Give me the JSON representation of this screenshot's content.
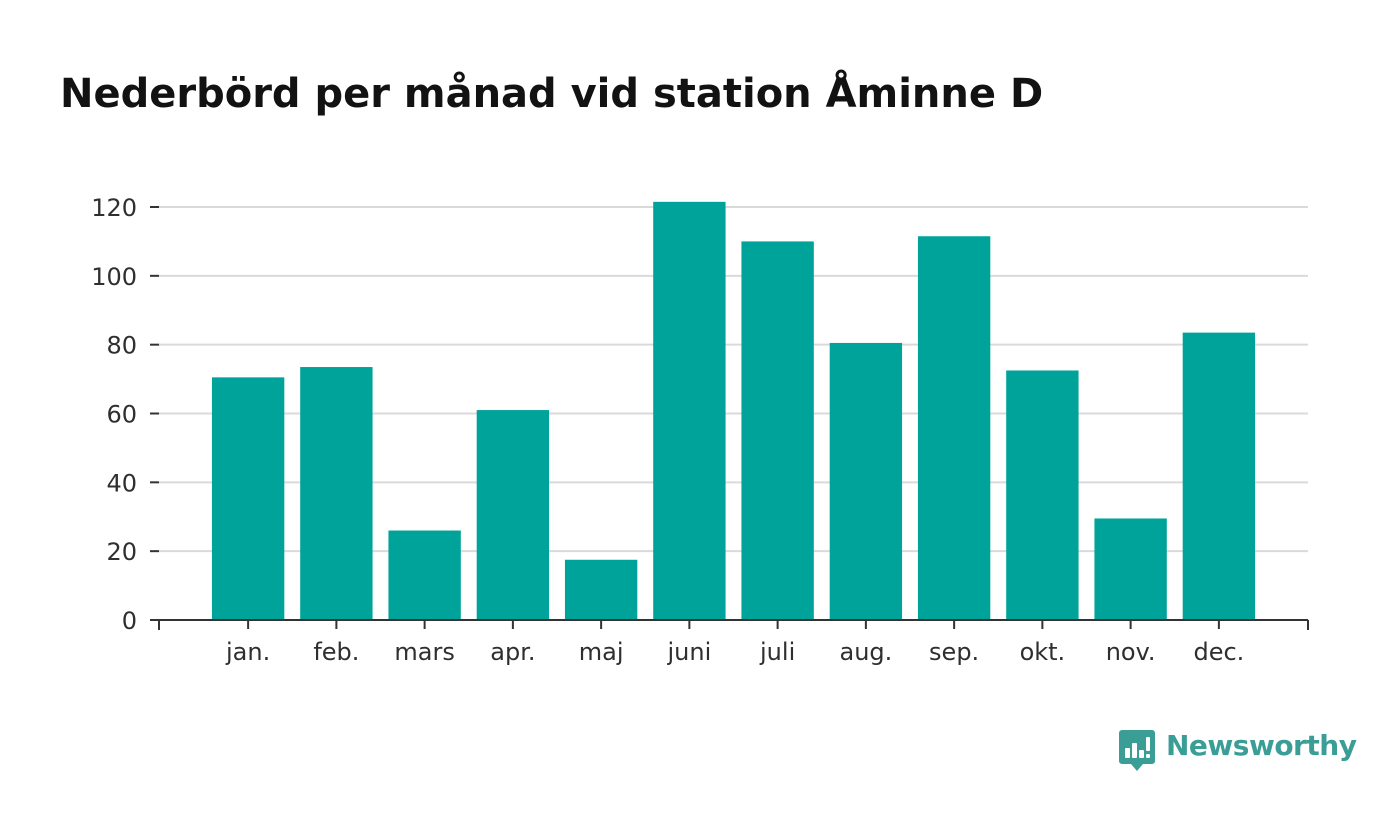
{
  "chart_data": {
    "type": "bar",
    "title": "Nederbörd per månad vid station Åminne D",
    "categories": [
      "jan.",
      "feb.",
      "mars",
      "apr.",
      "maj",
      "juni",
      "juli",
      "aug.",
      "sep.",
      "okt.",
      "nov.",
      "dec."
    ],
    "values": [
      70.5,
      73.5,
      26,
      61,
      17.5,
      121.5,
      110,
      80.5,
      111.5,
      72.5,
      29.5,
      83.5
    ],
    "xlabel": "",
    "ylabel": "",
    "ylim": [
      0,
      120
    ],
    "yticks": [
      0,
      20,
      40,
      60,
      80,
      100,
      120
    ],
    "grid": true,
    "bar_color": "#00a39a"
  },
  "logo": {
    "text": "Newsworthy",
    "color": "#3a9e96"
  }
}
